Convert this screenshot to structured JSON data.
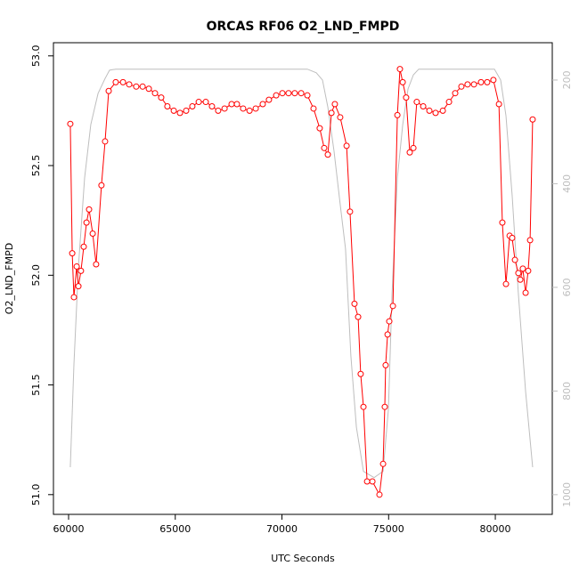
{
  "chart_data": {
    "type": "line",
    "title": "ORCAS RF06 O2_LND_FMPD",
    "x_label": "UTC Seconds",
    "y_label": "O2_LND_FMPD",
    "xlim": [
      59290,
      82670
    ],
    "ylim": [
      50.91,
      53.06
    ],
    "y2lim": [
      1038,
      128
    ],
    "xticks": [
      60000,
      65000,
      70000,
      75000,
      80000
    ],
    "yticks": [
      {
        "value": 51,
        "label": "51.0"
      },
      51.5,
      {
        "value": 52,
        "label": "52.0"
      },
      52.5,
      {
        "value": 53,
        "label": "53.0"
      }
    ],
    "y2ticks": [
      200,
      400,
      600,
      800,
      1000
    ],
    "series": [
      {
        "color": "#bebebe",
        "axis": "y2",
        "x": [
          60080,
          60250,
          60460,
          60750,
          61040,
          61380,
          61710,
          61920,
          62210,
          71190,
          71610,
          71900,
          72150,
          72440,
          72730,
          72980,
          73230,
          73490,
          73820,
          74320,
          74740,
          74990,
          75160,
          75410,
          75660,
          75910,
          76160,
          76410,
          79960,
          80250,
          80500,
          80790,
          81080,
          81420,
          81750
        ],
        "values": [
          947,
          749,
          561,
          389,
          286,
          226,
          197,
          181,
          179,
          179,
          186,
          200,
          252,
          337,
          440,
          526,
          732,
          870,
          955,
          967,
          955,
          835,
          612,
          389,
          286,
          217,
          190,
          179,
          179,
          200,
          269,
          423,
          612,
          801,
          947
        ]
      },
      {
        "color": "#ff0000",
        "marker": "circle",
        "x": [
          60080,
          60170,
          60250,
          60380,
          60460,
          60580,
          60710,
          60840,
          60960,
          61130,
          61290,
          61540,
          61710,
          61880,
          62210,
          62550,
          62840,
          63170,
          63470,
          63760,
          64050,
          64340,
          64630,
          64930,
          65220,
          65510,
          65800,
          66100,
          66430,
          66720,
          67010,
          67310,
          67640,
          67890,
          68180,
          68480,
          68770,
          69100,
          69390,
          69730,
          70020,
          70310,
          70600,
          70900,
          71190,
          71480,
          71770,
          71980,
          72150,
          72320,
          72480,
          72730,
          73030,
          73190,
          73400,
          73570,
          73690,
          73820,
          73990,
          74240,
          74570,
          74740,
          74820,
          74860,
          74950,
          75030,
          75200,
          75410,
          75530,
          75660,
          75820,
          75990,
          76160,
          76320,
          76620,
          76910,
          77200,
          77540,
          77830,
          78120,
          78410,
          78700,
          79000,
          79330,
          79620,
          79910,
          80170,
          80330,
          80500,
          80670,
          80790,
          80920,
          81080,
          81170,
          81290,
          81420,
          81540,
          81630,
          81750
        ],
        "values": [
          52.69,
          52.1,
          51.9,
          52.04,
          51.95,
          52.02,
          52.13,
          52.24,
          52.3,
          52.19,
          52.05,
          52.41,
          52.61,
          52.84,
          52.88,
          52.88,
          52.87,
          52.86,
          52.86,
          52.85,
          52.83,
          52.81,
          52.77,
          52.75,
          52.74,
          52.75,
          52.77,
          52.79,
          52.79,
          52.77,
          52.75,
          52.76,
          52.78,
          52.78,
          52.76,
          52.75,
          52.76,
          52.78,
          52.8,
          52.82,
          52.83,
          52.83,
          52.83,
          52.83,
          52.82,
          52.76,
          52.67,
          52.58,
          52.55,
          52.74,
          52.78,
          52.72,
          52.59,
          52.29,
          51.87,
          51.81,
          51.55,
          51.4,
          51.06,
          51.06,
          51.0,
          51.14,
          51.4,
          51.59,
          51.73,
          51.79,
          51.86,
          52.73,
          52.94,
          52.88,
          52.81,
          52.56,
          52.58,
          52.79,
          52.77,
          52.75,
          52.74,
          52.75,
          52.79,
          52.83,
          52.86,
          52.87,
          52.87,
          52.88,
          52.88,
          52.89,
          52.78,
          52.24,
          51.96,
          52.18,
          52.17,
          52.07,
          52.01,
          51.98,
          52.03,
          51.92,
          52.02,
          52.16,
          52.71
        ]
      }
    ]
  }
}
